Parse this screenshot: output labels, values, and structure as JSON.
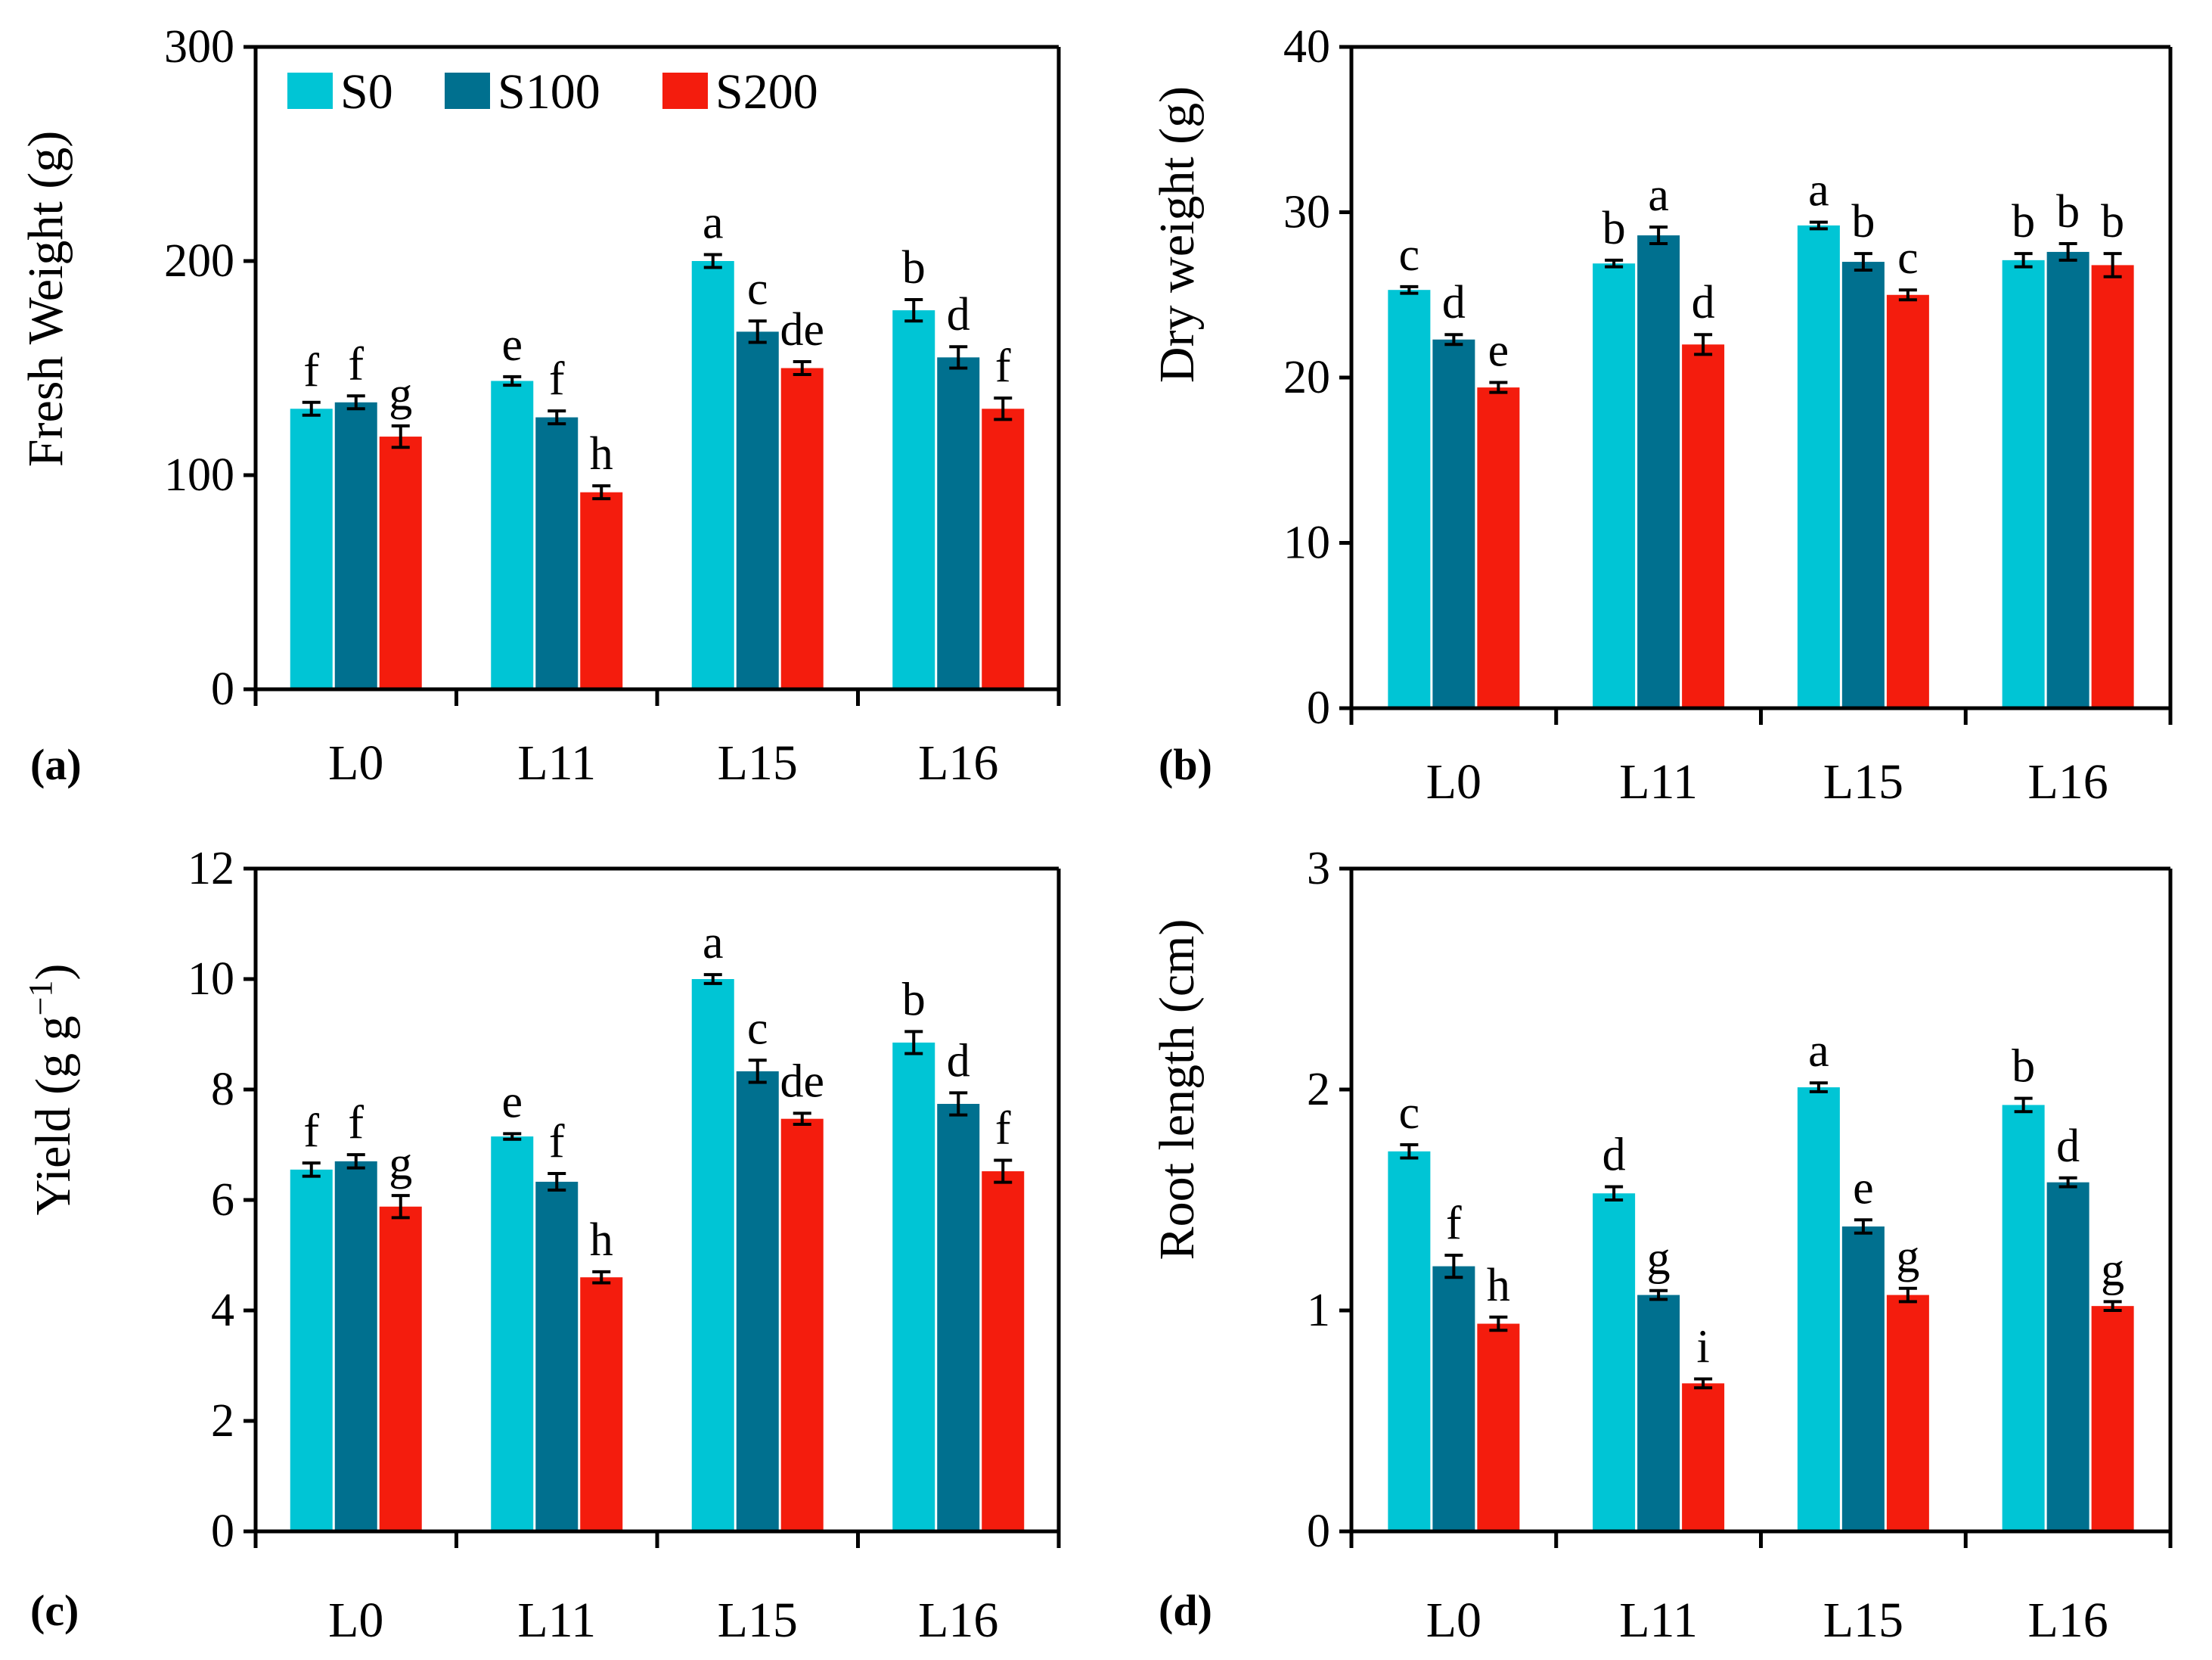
{
  "chart_data": [
    {
      "type": "bar",
      "panel_label": "(a)",
      "ylabel": "Fresh Weight (g)",
      "ylim": [
        0,
        300
      ],
      "yticks": [
        "0",
        "100",
        "200",
        "300"
      ],
      "categories": [
        "L0",
        "L11",
        "L15",
        "L16"
      ],
      "legend": {
        "placement": "top-left",
        "entries": [
          "S0",
          "S100",
          "S200"
        ]
      },
      "series": [
        {
          "name": "S0",
          "color": "#00c5d5",
          "values": [
            131,
            144,
            200,
            177
          ],
          "errors": [
            3,
            2,
            3,
            5
          ],
          "letters": [
            "f",
            "e",
            "a",
            "b"
          ]
        },
        {
          "name": "S100",
          "color": "#00708f",
          "values": [
            134,
            127,
            167,
            155
          ],
          "errors": [
            3,
            3,
            5,
            5
          ],
          "letters": [
            "f",
            "f",
            "c",
            "d"
          ]
        },
        {
          "name": "S200",
          "color": "#f41c0d",
          "values": [
            118,
            92,
            150,
            131
          ],
          "errors": [
            5,
            3,
            3,
            5
          ],
          "letters": [
            "g",
            "h",
            "de",
            "f"
          ]
        }
      ]
    },
    {
      "type": "bar",
      "panel_label": "(b)",
      "ylabel": "Dry weight (g)",
      "ylim": [
        0,
        40
      ],
      "yticks": [
        "0",
        "10",
        "20",
        "30",
        "40"
      ],
      "categories": [
        "L0",
        "L11",
        "L15",
        "L16"
      ],
      "series": [
        {
          "name": "S0",
          "color": "#00c5d5",
          "values": [
            25.3,
            26.9,
            29.2,
            27.1
          ],
          "errors": [
            0.2,
            0.2,
            0.2,
            0.4
          ],
          "letters": [
            "c",
            "b",
            "a",
            "b"
          ]
        },
        {
          "name": "S100",
          "color": "#00708f",
          "values": [
            22.3,
            28.6,
            27.0,
            27.6
          ],
          "errors": [
            0.3,
            0.5,
            0.5,
            0.5
          ],
          "letters": [
            "d",
            "a",
            "b",
            "b"
          ]
        },
        {
          "name": "S200",
          "color": "#f41c0d",
          "values": [
            19.4,
            22.0,
            25.0,
            26.8
          ],
          "errors": [
            0.3,
            0.6,
            0.3,
            0.7
          ],
          "letters": [
            "e",
            "d",
            "c",
            "b"
          ]
        }
      ]
    },
    {
      "type": "bar",
      "panel_label": "(c)",
      "ylabel_main": "Yield (g g",
      "ylabel_sup": "−1",
      "ylabel_end": ")",
      "ylim": [
        0,
        12
      ],
      "yticks": [
        "0",
        "2",
        "4",
        "6",
        "8",
        "10",
        "12"
      ],
      "categories": [
        "L0",
        "L11",
        "L15",
        "L16"
      ],
      "series": [
        {
          "name": "S0",
          "color": "#00c5d5",
          "values": [
            6.55,
            7.15,
            10.0,
            8.85
          ],
          "errors": [
            0.12,
            0.05,
            0.08,
            0.2
          ],
          "letters": [
            "f",
            "e",
            "a",
            "b"
          ]
        },
        {
          "name": "S100",
          "color": "#00708f",
          "values": [
            6.7,
            6.33,
            8.33,
            7.74
          ],
          "errors": [
            0.12,
            0.15,
            0.2,
            0.2
          ],
          "letters": [
            "f",
            "f",
            "c",
            "d"
          ]
        },
        {
          "name": "S200",
          "color": "#f41c0d",
          "values": [
            5.88,
            4.6,
            7.47,
            6.52
          ],
          "errors": [
            0.2,
            0.1,
            0.1,
            0.2
          ],
          "letters": [
            "g",
            "h",
            "de",
            "f"
          ]
        }
      ]
    },
    {
      "type": "bar",
      "panel_label": "(d)",
      "ylabel": "Root length (cm)",
      "ylim": [
        0,
        3
      ],
      "yticks": [
        "0",
        "1",
        "2",
        "3"
      ],
      "categories": [
        "L0",
        "L11",
        "L15",
        "L16"
      ],
      "series": [
        {
          "name": "S0",
          "color": "#00c5d5",
          "values": [
            1.72,
            1.53,
            2.01,
            1.93
          ],
          "errors": [
            0.03,
            0.03,
            0.02,
            0.03
          ],
          "letters": [
            "c",
            "d",
            "a",
            "b"
          ]
        },
        {
          "name": "S100",
          "color": "#00708f",
          "values": [
            1.2,
            1.07,
            1.38,
            1.58
          ],
          "errors": [
            0.05,
            0.02,
            0.03,
            0.02
          ],
          "letters": [
            "f",
            "g",
            "e",
            "d"
          ]
        },
        {
          "name": "S200",
          "color": "#f41c0d",
          "values": [
            0.94,
            0.67,
            1.07,
            1.02
          ],
          "errors": [
            0.03,
            0.02,
            0.03,
            0.02
          ],
          "letters": [
            "h",
            "i",
            "g",
            "g"
          ]
        }
      ]
    }
  ]
}
